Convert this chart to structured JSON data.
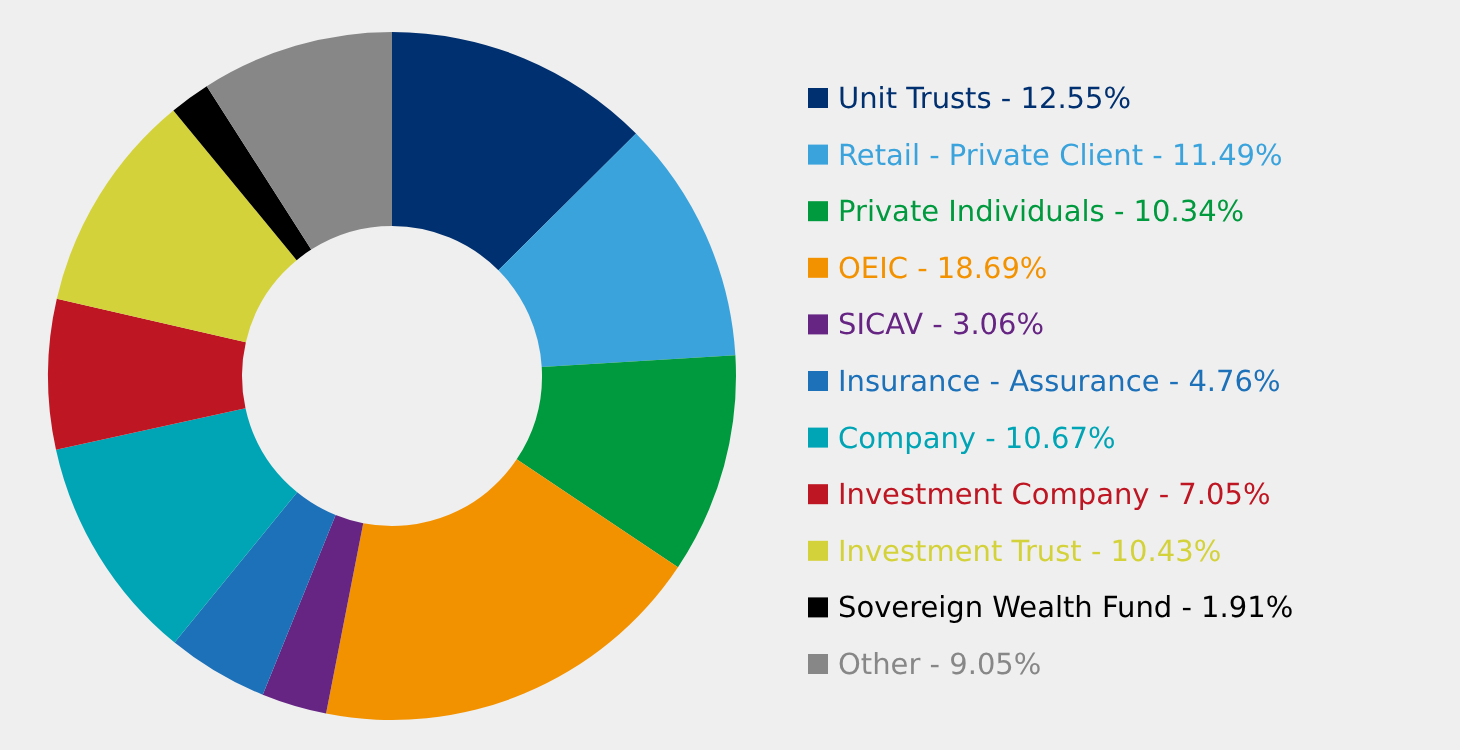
{
  "chart_data": {
    "type": "donut",
    "categories": [
      "Unit Trusts",
      "Retail - Private Client",
      "Private Individuals",
      "OEIC",
      "SICAV",
      "Insurance - Assurance",
      "Company",
      "Investment Company",
      "Investment Trust",
      "Sovereign Wealth Fund",
      "Other"
    ],
    "values": [
      12.55,
      11.49,
      10.34,
      18.69,
      3.06,
      4.76,
      10.67,
      7.05,
      10.43,
      1.91,
      9.05
    ],
    "value_labels": [
      "12.55%",
      "11.49%",
      "10.34%",
      "18.69%",
      "3.06%",
      "4.76%",
      "10.67%",
      "7.05%",
      "10.43%",
      "1.91%",
      "9.05%"
    ],
    "colors": [
      "#00306f",
      "#3ba3dc",
      "#009a3e",
      "#f39200",
      "#662483",
      "#1d71b8",
      "#00a5b5",
      "#be1622",
      "#d4d23a",
      "#000000",
      "#878787"
    ],
    "legend": "right"
  }
}
